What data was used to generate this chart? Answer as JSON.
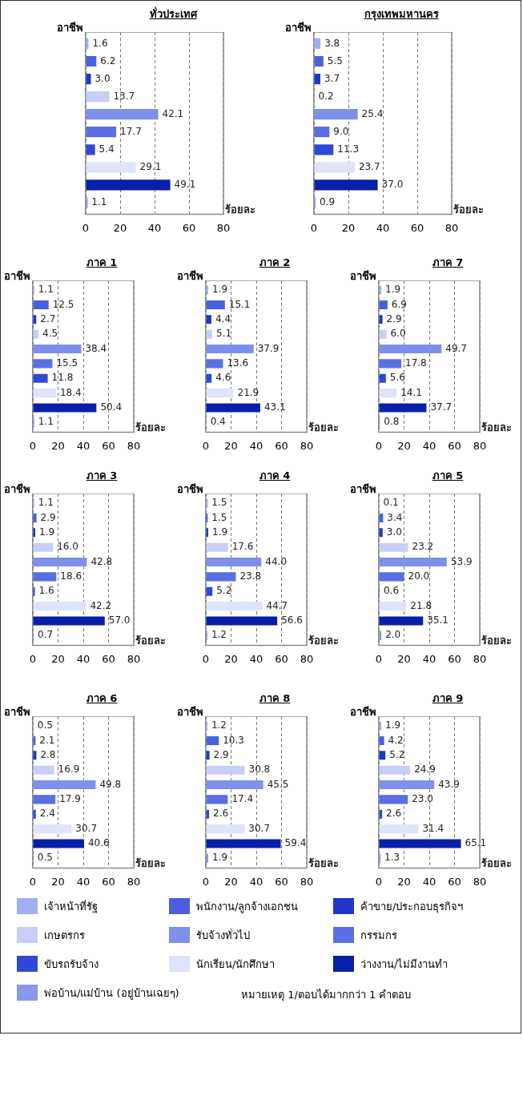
{
  "chart_data": [
    {
      "type": "bar",
      "orientation": "horizontal",
      "title": "ทั่วประเทศ",
      "ylabel": "อาชีพ",
      "xlabel": "ร้อยละ",
      "categories": [
        null
      ],
      "xlim": [
        0,
        80
      ],
      "xticks": [
        0,
        20,
        40,
        60,
        80
      ],
      "grid": "x",
      "tick_labels": "x",
      "legend": "bottom",
      "annotations": [
        "หมายเหตุ 1/ตอบได้มากกว่า 1 คำตอบ"
      ],
      "series": [
        {
          "name": "เจ้าหน้าที่รัฐ",
          "color": "#9fb0f0",
          "values": [
            1.6
          ],
          "value_labels": [
            "1.6"
          ]
        },
        {
          "name": "พนักงาน/ลูกจ้างเอกชน",
          "color": "#4a5fe0",
          "values": [
            6.2
          ],
          "value_labels": [
            "6.2"
          ]
        },
        {
          "name": "ค้าขาย/ประกอบธุรกิจฯ",
          "color": "#1f36c8",
          "values": [
            3.0
          ],
          "value_labels": [
            "3.0"
          ]
        },
        {
          "name": "เกษตรกร",
          "color": "#c6cff6",
          "values": [
            13.7
          ],
          "value_labels": [
            "13.7"
          ]
        },
        {
          "name": "รับจ้างทั่วไป",
          "color": "#7f90ea",
          "values": [
            42.1
          ],
          "value_labels": [
            "42.1"
          ]
        },
        {
          "name": "กรรมกร",
          "color": "#5a6fe3",
          "values": [
            17.7
          ],
          "value_labels": [
            "17.7"
          ]
        },
        {
          "name": "ขับรถรับจ้าง",
          "color": "#3048d8",
          "values": [
            5.4
          ],
          "value_labels": [
            "5.4"
          ]
        },
        {
          "name": "นักเรียน/นักศึกษา",
          "color": "#dfe4fa",
          "values": [
            29.1
          ],
          "value_labels": [
            "29.1"
          ]
        },
        {
          "name": "ว่างงาน/ไม่มีงานทำ",
          "color": "#0a1fa8",
          "values": [
            49.1
          ],
          "value_labels": [
            "49.1"
          ]
        },
        {
          "name": "พ่อบ้าน/แม่บ้าน (อยู่บ้านเฉยๆ)",
          "color": "#8898ec",
          "values": [
            1.1
          ],
          "value_labels": [
            "1.1"
          ]
        }
      ]
    },
    {
      "type": "bar",
      "orientation": "horizontal",
      "title": "กรุงเทพมหานคร",
      "ylabel": "อาชีพ",
      "xlabel": "ร้อยละ",
      "categories": [
        null
      ],
      "xlim": [
        0,
        80
      ],
      "xticks": [
        0,
        20,
        40,
        60,
        80
      ],
      "grid": "x",
      "tick_labels": "x",
      "series": [
        {
          "color": "#9fb0f0",
          "values": [
            3.8
          ],
          "value_labels": [
            "3.8"
          ]
        },
        {
          "color": "#4a5fe0",
          "values": [
            5.5
          ],
          "value_labels": [
            "5.5"
          ]
        },
        {
          "color": "#1f36c8",
          "values": [
            3.7
          ],
          "value_labels": [
            "3.7"
          ]
        },
        {
          "color": "#c6cff6",
          "values": [
            0.2
          ],
          "value_labels": [
            "0.2"
          ]
        },
        {
          "color": "#7f90ea",
          "values": [
            25.4
          ],
          "value_labels": [
            "25.4"
          ]
        },
        {
          "color": "#5a6fe3",
          "values": [
            9.0
          ],
          "value_labels": [
            "9.0"
          ]
        },
        {
          "color": "#3048d8",
          "values": [
            11.3
          ],
          "value_labels": [
            "11.3"
          ]
        },
        {
          "color": "#dfe4fa",
          "values": [
            23.7
          ],
          "value_labels": [
            "23.7"
          ]
        },
        {
          "color": "#0a1fa8",
          "values": [
            37.0
          ],
          "value_labels": [
            "37.0"
          ]
        },
        {
          "color": "#8898ec",
          "values": [
            0.9
          ],
          "value_labels": [
            "0.9"
          ]
        }
      ]
    },
    {
      "type": "bar",
      "orientation": "horizontal",
      "title": "ภาค 1",
      "ylabel": "อาชีพ",
      "xlabel": "ร้อยละ",
      "categories": [
        null
      ],
      "xlim": [
        0,
        80
      ],
      "xticks": [
        0,
        20,
        40,
        60,
        80
      ],
      "grid": "x",
      "tick_labels": "x",
      "series": [
        {
          "color": "#9fb0f0",
          "values": [
            1.1
          ],
          "value_labels": [
            "1.1"
          ]
        },
        {
          "color": "#4a5fe0",
          "values": [
            12.5
          ],
          "value_labels": [
            "12.5"
          ]
        },
        {
          "color": "#1f36c8",
          "values": [
            2.7
          ],
          "value_labels": [
            "2.7"
          ]
        },
        {
          "color": "#c6cff6",
          "values": [
            4.5
          ],
          "value_labels": [
            "4.5"
          ]
        },
        {
          "color": "#7f90ea",
          "values": [
            38.4
          ],
          "value_labels": [
            "38.4"
          ]
        },
        {
          "color": "#5a6fe3",
          "values": [
            15.5
          ],
          "value_labels": [
            "15.5"
          ]
        },
        {
          "color": "#3048d8",
          "values": [
            11.8
          ],
          "value_labels": [
            "11.8"
          ]
        },
        {
          "color": "#dfe4fa",
          "values": [
            18.4
          ],
          "value_labels": [
            "18.4"
          ]
        },
        {
          "color": "#0a1fa8",
          "values": [
            50.4
          ],
          "value_labels": [
            "50.4"
          ]
        },
        {
          "color": "#8898ec",
          "values": [
            1.1
          ],
          "value_labels": [
            "1.1"
          ]
        }
      ]
    },
    {
      "type": "bar",
      "orientation": "horizontal",
      "title": "ภาค 2",
      "ylabel": "อาชีพ",
      "xlabel": "ร้อยละ",
      "categories": [
        null
      ],
      "xlim": [
        0,
        80
      ],
      "xticks": [
        0,
        20,
        40,
        60,
        80
      ],
      "grid": "x",
      "tick_labels": "x",
      "series": [
        {
          "color": "#9fb0f0",
          "values": [
            1.9
          ],
          "value_labels": [
            "1.9"
          ]
        },
        {
          "color": "#4a5fe0",
          "values": [
            15.1
          ],
          "value_labels": [
            "15.1"
          ]
        },
        {
          "color": "#1f36c8",
          "values": [
            4.4
          ],
          "value_labels": [
            "4.4"
          ]
        },
        {
          "color": "#c6cff6",
          "values": [
            5.1
          ],
          "value_labels": [
            "5.1"
          ]
        },
        {
          "color": "#7f90ea",
          "values": [
            37.9
          ],
          "value_labels": [
            "37.9"
          ]
        },
        {
          "color": "#5a6fe3",
          "values": [
            13.6
          ],
          "value_labels": [
            "13.6"
          ]
        },
        {
          "color": "#3048d8",
          "values": [
            4.6
          ],
          "value_labels": [
            "4.6"
          ]
        },
        {
          "color": "#dfe4fa",
          "values": [
            21.9
          ],
          "value_labels": [
            "21.9"
          ]
        },
        {
          "color": "#0a1fa8",
          "values": [
            43.1
          ],
          "value_labels": [
            "43.1"
          ]
        },
        {
          "color": "#8898ec",
          "values": [
            0.4
          ],
          "value_labels": [
            "0.4"
          ]
        }
      ]
    },
    {
      "type": "bar",
      "orientation": "horizontal",
      "title": "ภาค 7",
      "ylabel": "อาชีพ",
      "xlabel": "ร้อยละ",
      "categories": [
        null
      ],
      "xlim": [
        0,
        80
      ],
      "xticks": [
        0,
        20,
        40,
        60,
        80
      ],
      "grid": "x",
      "tick_labels": "x",
      "series": [
        {
          "color": "#9fb0f0",
          "values": [
            1.9
          ],
          "value_labels": [
            "1.9"
          ]
        },
        {
          "color": "#4a5fe0",
          "values": [
            6.9
          ],
          "value_labels": [
            "6.9"
          ]
        },
        {
          "color": "#1f36c8",
          "values": [
            2.9
          ],
          "value_labels": [
            "2.9"
          ]
        },
        {
          "color": "#c6cff6",
          "values": [
            6.0
          ],
          "value_labels": [
            "6.0"
          ]
        },
        {
          "color": "#7f90ea",
          "values": [
            49.7
          ],
          "value_labels": [
            "49.7"
          ]
        },
        {
          "color": "#5a6fe3",
          "values": [
            17.8
          ],
          "value_labels": [
            "17.8"
          ]
        },
        {
          "color": "#3048d8",
          "values": [
            5.6
          ],
          "value_labels": [
            "5.6"
          ]
        },
        {
          "color": "#dfe4fa",
          "values": [
            14.1
          ],
          "value_labels": [
            "14.1"
          ]
        },
        {
          "color": "#0a1fa8",
          "values": [
            37.7
          ],
          "value_labels": [
            "37.7"
          ]
        },
        {
          "color": "#8898ec",
          "values": [
            0.8
          ],
          "value_labels": [
            "0.8"
          ]
        }
      ]
    },
    {
      "type": "bar",
      "orientation": "horizontal",
      "title": "ภาค 3",
      "ylabel": "อาชีพ",
      "xlabel": "ร้อยละ",
      "categories": [
        null
      ],
      "xlim": [
        0,
        80
      ],
      "xticks": [
        0,
        20,
        40,
        60,
        80
      ],
      "grid": "x",
      "tick_labels": "x",
      "series": [
        {
          "color": "#9fb0f0",
          "values": [
            1.1
          ],
          "value_labels": [
            "1.1"
          ]
        },
        {
          "color": "#4a5fe0",
          "values": [
            2.9
          ],
          "value_labels": [
            "2.9"
          ]
        },
        {
          "color": "#1f36c8",
          "values": [
            1.9
          ],
          "value_labels": [
            "1.9"
          ]
        },
        {
          "color": "#c6cff6",
          "values": [
            16.0
          ],
          "value_labels": [
            "16.0"
          ]
        },
        {
          "color": "#7f90ea",
          "values": [
            42.8
          ],
          "value_labels": [
            "42.8"
          ]
        },
        {
          "color": "#5a6fe3",
          "values": [
            18.6
          ],
          "value_labels": [
            "18.6"
          ]
        },
        {
          "color": "#3048d8",
          "values": [
            1.6
          ],
          "value_labels": [
            "1.6"
          ]
        },
        {
          "color": "#dfe4fa",
          "values": [
            42.2
          ],
          "value_labels": [
            "42.2"
          ]
        },
        {
          "color": "#0a1fa8",
          "values": [
            57.0
          ],
          "value_labels": [
            "57.0"
          ]
        },
        {
          "color": "#8898ec",
          "values": [
            0.7
          ],
          "value_labels": [
            "0.7"
          ]
        }
      ]
    },
    {
      "type": "bar",
      "orientation": "horizontal",
      "title": "ภาค 4",
      "ylabel": "อาชีพ",
      "xlabel": "ร้อยละ",
      "categories": [
        null
      ],
      "xlim": [
        0,
        80
      ],
      "xticks": [
        0,
        20,
        40,
        60,
        80
      ],
      "grid": "x",
      "tick_labels": "x",
      "series": [
        {
          "color": "#9fb0f0",
          "values": [
            1.5
          ],
          "value_labels": [
            "1.5"
          ]
        },
        {
          "color": "#4a5fe0",
          "values": [
            1.5
          ],
          "value_labels": [
            "1.5"
          ]
        },
        {
          "color": "#1f36c8",
          "values": [
            1.9
          ],
          "value_labels": [
            "1.9"
          ]
        },
        {
          "color": "#c6cff6",
          "values": [
            17.6
          ],
          "value_labels": [
            "17.6"
          ]
        },
        {
          "color": "#7f90ea",
          "values": [
            44.0
          ],
          "value_labels": [
            "44.0"
          ]
        },
        {
          "color": "#5a6fe3",
          "values": [
            23.8
          ],
          "value_labels": [
            "23.8"
          ]
        },
        {
          "color": "#3048d8",
          "values": [
            5.2
          ],
          "value_labels": [
            "5.2"
          ]
        },
        {
          "color": "#dfe4fa",
          "values": [
            44.7
          ],
          "value_labels": [
            "44.7"
          ]
        },
        {
          "color": "#0a1fa8",
          "values": [
            56.6
          ],
          "value_labels": [
            "56.6"
          ]
        },
        {
          "color": "#8898ec",
          "values": [
            1.2
          ],
          "value_labels": [
            "1.2"
          ]
        }
      ]
    },
    {
      "type": "bar",
      "orientation": "horizontal",
      "title": "ภาค 5",
      "ylabel": "อาชีพ",
      "xlabel": "ร้อยละ",
      "categories": [
        null
      ],
      "xlim": [
        0,
        80
      ],
      "xticks": [
        0,
        20,
        40,
        60,
        80
      ],
      "grid": "x",
      "tick_labels": "x",
      "series": [
        {
          "color": "#9fb0f0",
          "values": [
            0.1
          ],
          "value_labels": [
            "0.1"
          ]
        },
        {
          "color": "#4a5fe0",
          "values": [
            3.4
          ],
          "value_labels": [
            "3.4"
          ]
        },
        {
          "color": "#1f36c8",
          "values": [
            3.0
          ],
          "value_labels": [
            "3.0"
          ]
        },
        {
          "color": "#c6cff6",
          "values": [
            23.2
          ],
          "value_labels": [
            "23.2"
          ]
        },
        {
          "color": "#7f90ea",
          "values": [
            53.9
          ],
          "value_labels": [
            "53.9"
          ]
        },
        {
          "color": "#5a6fe3",
          "values": [
            20.0
          ],
          "value_labels": [
            "20.0"
          ]
        },
        {
          "color": "#3048d8",
          "values": [
            0.6
          ],
          "value_labels": [
            "0.6"
          ]
        },
        {
          "color": "#dfe4fa",
          "values": [
            21.8
          ],
          "value_labels": [
            "21.8"
          ]
        },
        {
          "color": "#0a1fa8",
          "values": [
            35.1
          ],
          "value_labels": [
            "35.1"
          ]
        },
        {
          "color": "#8898ec",
          "values": [
            2.0
          ],
          "value_labels": [
            "2.0"
          ]
        }
      ]
    },
    {
      "type": "bar",
      "orientation": "horizontal",
      "title": "ภาค 6",
      "ylabel": "อาชีพ",
      "xlabel": "ร้อยละ",
      "categories": [
        null
      ],
      "xlim": [
        0,
        80
      ],
      "xticks": [
        0,
        20,
        40,
        60,
        80
      ],
      "grid": "x",
      "tick_labels": "x",
      "series": [
        {
          "color": "#9fb0f0",
          "values": [
            0.5
          ],
          "value_labels": [
            "0.5"
          ]
        },
        {
          "color": "#4a5fe0",
          "values": [
            2.1
          ],
          "value_labels": [
            "2.1"
          ]
        },
        {
          "color": "#1f36c8",
          "values": [
            2.8
          ],
          "value_labels": [
            "2.8"
          ]
        },
        {
          "color": "#c6cff6",
          "values": [
            16.9
          ],
          "value_labels": [
            "16.9"
          ]
        },
        {
          "color": "#7f90ea",
          "values": [
            49.8
          ],
          "value_labels": [
            "49.8"
          ]
        },
        {
          "color": "#5a6fe3",
          "values": [
            17.9
          ],
          "value_labels": [
            "17.9"
          ]
        },
        {
          "color": "#3048d8",
          "values": [
            2.4
          ],
          "value_labels": [
            "2.4"
          ]
        },
        {
          "color": "#dfe4fa",
          "values": [
            30.7
          ],
          "value_labels": [
            "30.7"
          ]
        },
        {
          "color": "#0a1fa8",
          "values": [
            40.6
          ],
          "value_labels": [
            "40.6"
          ]
        },
        {
          "color": "#8898ec",
          "values": [
            0.5
          ],
          "value_labels": [
            "0.5"
          ]
        }
      ]
    },
    {
      "type": "bar",
      "orientation": "horizontal",
      "title": "ภาค 8",
      "ylabel": "อาชีพ",
      "xlabel": "ร้อยละ",
      "categories": [
        null
      ],
      "xlim": [
        0,
        80
      ],
      "xticks": [
        0,
        20,
        40,
        60,
        80
      ],
      "grid": "x",
      "tick_labels": "x",
      "series": [
        {
          "color": "#9fb0f0",
          "values": [
            1.2
          ],
          "value_labels": [
            "1.2"
          ]
        },
        {
          "color": "#4a5fe0",
          "values": [
            10.3
          ],
          "value_labels": [
            "10.3"
          ]
        },
        {
          "color": "#1f36c8",
          "values": [
            2.9
          ],
          "value_labels": [
            "2.9"
          ]
        },
        {
          "color": "#c6cff6",
          "values": [
            30.8
          ],
          "value_labels": [
            "30.8"
          ]
        },
        {
          "color": "#7f90ea",
          "values": [
            45.5
          ],
          "value_labels": [
            "45.5"
          ]
        },
        {
          "color": "#5a6fe3",
          "values": [
            17.4
          ],
          "value_labels": [
            "17.4"
          ]
        },
        {
          "color": "#3048d8",
          "values": [
            2.6
          ],
          "value_labels": [
            "2.6"
          ]
        },
        {
          "color": "#dfe4fa",
          "values": [
            30.7
          ],
          "value_labels": [
            "30.7"
          ]
        },
        {
          "color": "#0a1fa8",
          "values": [
            59.4
          ],
          "value_labels": [
            "59.4"
          ]
        },
        {
          "color": "#8898ec",
          "values": [
            1.9
          ],
          "value_labels": [
            "1.9"
          ]
        }
      ]
    },
    {
      "type": "bar",
      "orientation": "horizontal",
      "title": "ภาค 9",
      "ylabel": "อาชีพ",
      "xlabel": "ร้อยละ",
      "categories": [
        null
      ],
      "xlim": [
        0,
        80
      ],
      "xticks": [
        0,
        20,
        40,
        60,
        80
      ],
      "grid": "x",
      "tick_labels": "x",
      "series": [
        {
          "color": "#9fb0f0",
          "values": [
            1.9
          ],
          "value_labels": [
            "1.9"
          ]
        },
        {
          "color": "#4a5fe0",
          "values": [
            4.2
          ],
          "value_labels": [
            "4.2"
          ]
        },
        {
          "color": "#1f36c8",
          "values": [
            5.2
          ],
          "value_labels": [
            "5.2"
          ]
        },
        {
          "color": "#c6cff6",
          "values": [
            24.9
          ],
          "value_labels": [
            "24.9"
          ]
        },
        {
          "color": "#7f90ea",
          "values": [
            43.9
          ],
          "value_labels": [
            "43.9"
          ]
        },
        {
          "color": "#5a6fe3",
          "values": [
            23.0
          ],
          "value_labels": [
            "23.0"
          ]
        },
        {
          "color": "#3048d8",
          "values": [
            2.6
          ],
          "value_labels": [
            "2.6"
          ]
        },
        {
          "color": "#dfe4fa",
          "values": [
            31.4
          ],
          "value_labels": [
            "31.4"
          ]
        },
        {
          "color": "#0a1fa8",
          "values": [
            65.1
          ],
          "value_labels": [
            "65.1"
          ]
        },
        {
          "color": "#8898ec",
          "values": [
            1.3
          ],
          "value_labels": [
            "1.3"
          ]
        }
      ]
    }
  ]
}
